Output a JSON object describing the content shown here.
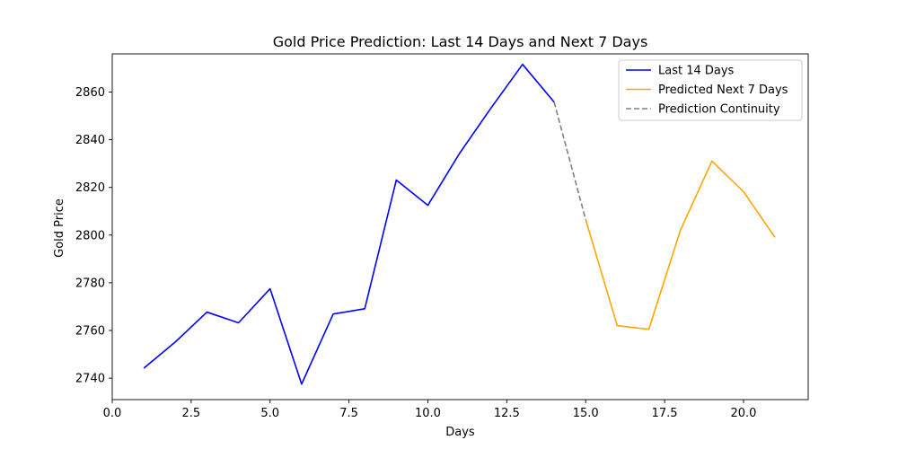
{
  "chart_data": {
    "type": "line",
    "title": "Gold Price Prediction: Last 14 Days and Next 7 Days",
    "xlabel": "Days",
    "ylabel": "Gold Price",
    "xlim": [
      0,
      22.05
    ],
    "ylim": [
      2731,
      2876
    ],
    "x_ticks": [
      0.0,
      2.5,
      5.0,
      7.5,
      10.0,
      12.5,
      15.0,
      17.5,
      20.0
    ],
    "x_tick_labels": [
      "0.0",
      "2.5",
      "5.0",
      "7.5",
      "10.0",
      "12.5",
      "15.0",
      "17.5",
      "20.0"
    ],
    "y_ticks": [
      2740,
      2760,
      2780,
      2800,
      2820,
      2840,
      2860
    ],
    "y_tick_labels": [
      "2740",
      "2760",
      "2780",
      "2800",
      "2820",
      "2840",
      "2860"
    ],
    "grid": false,
    "legend_position": "top-right",
    "series": [
      {
        "name": "Last 14 Days",
        "color": "#0000ff",
        "style": "solid",
        "x": [
          1,
          2,
          3,
          4,
          5,
          6,
          7,
          8,
          9,
          10,
          11,
          12,
          13,
          14
        ],
        "values": [
          2744.2,
          2755.2,
          2767.7,
          2763.2,
          2777.5,
          2737.5,
          2766.9,
          2769.1,
          2823.1,
          2812.5,
          2834.2,
          2853.3,
          2871.6,
          2855.8
        ]
      },
      {
        "name": "Predicted Next 7 Days",
        "color": "#ffa500",
        "style": "solid",
        "x": [
          15,
          16,
          17,
          18,
          19,
          20,
          21
        ],
        "values": [
          2806.5,
          2762.0,
          2760.5,
          2802.0,
          2831.0,
          2818.2,
          2799.0
        ]
      },
      {
        "name": "Prediction Continuity",
        "color": "#808080",
        "style": "dashed",
        "x": [
          14,
          15
        ],
        "values": [
          2855.8,
          2806.5
        ]
      }
    ]
  }
}
